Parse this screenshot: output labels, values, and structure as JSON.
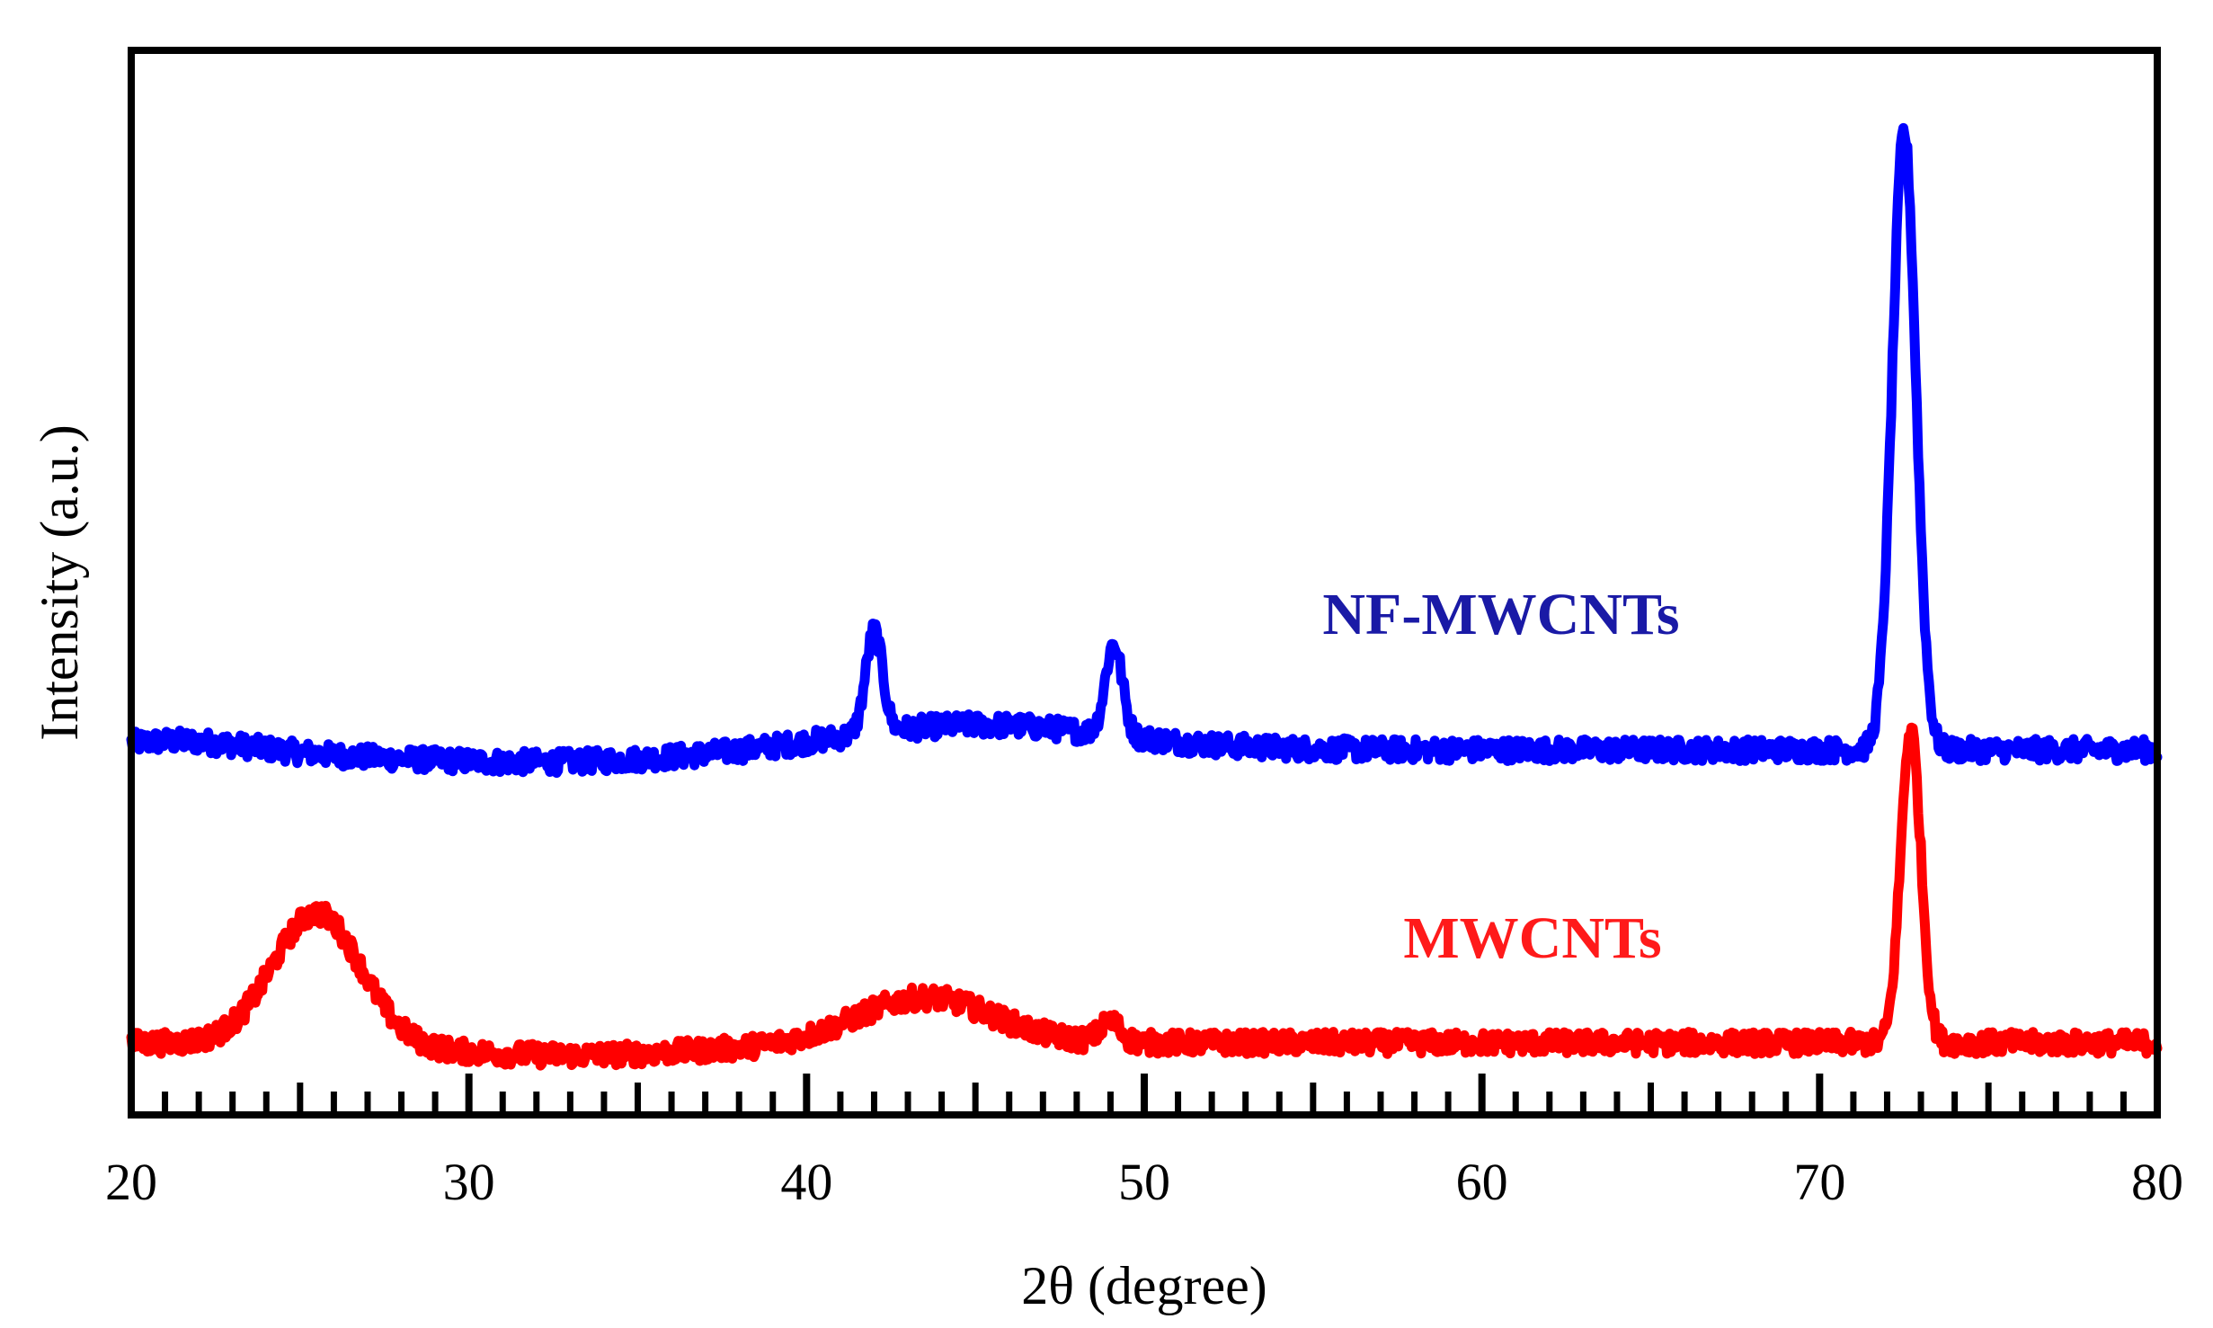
{
  "chart_data": {
    "type": "line",
    "title": "",
    "xlabel": "2θ (degree)",
    "ylabel": "Intensity (a.u.)",
    "xlim": [
      20,
      80
    ],
    "ylim": [
      0,
      1.05
    ],
    "x_ticks": [
      "20",
      "30",
      "40",
      "50",
      "60",
      "70",
      "80"
    ],
    "x_tick_values": [
      20,
      30,
      40,
      50,
      60,
      70,
      80
    ],
    "minor_tick_step": 1,
    "y_ticks_shown": false,
    "grid": false,
    "legend": "inline labels",
    "series": [
      {
        "name": "NF-MWCNTs",
        "color": "#0000ff",
        "baseline": 0.36,
        "peaks": [
          {
            "position": 42.0,
            "height": 0.1,
            "width": 0.25
          },
          {
            "position": 49.1,
            "height": 0.09,
            "width": 0.25
          },
          {
            "position": 72.5,
            "height": 0.61,
            "width": 0.35
          }
        ],
        "humps": [
          {
            "position": 21.5,
            "height": 0.01,
            "width": 2.0
          },
          {
            "position": 45.0,
            "height": 0.025,
            "width": 4.0
          }
        ]
      },
      {
        "name": "MWCNTs",
        "color": "#ff0000",
        "baseline": 0.075,
        "peaks": [
          {
            "position": 25.5,
            "height": 0.13,
            "width": 1.3
          },
          {
            "position": 43.5,
            "height": 0.045,
            "width": 2.0
          },
          {
            "position": 49.0,
            "height": 0.02,
            "width": 0.3
          },
          {
            "position": 72.7,
            "height": 0.31,
            "width": 0.3
          }
        ],
        "humps": []
      }
    ]
  }
}
